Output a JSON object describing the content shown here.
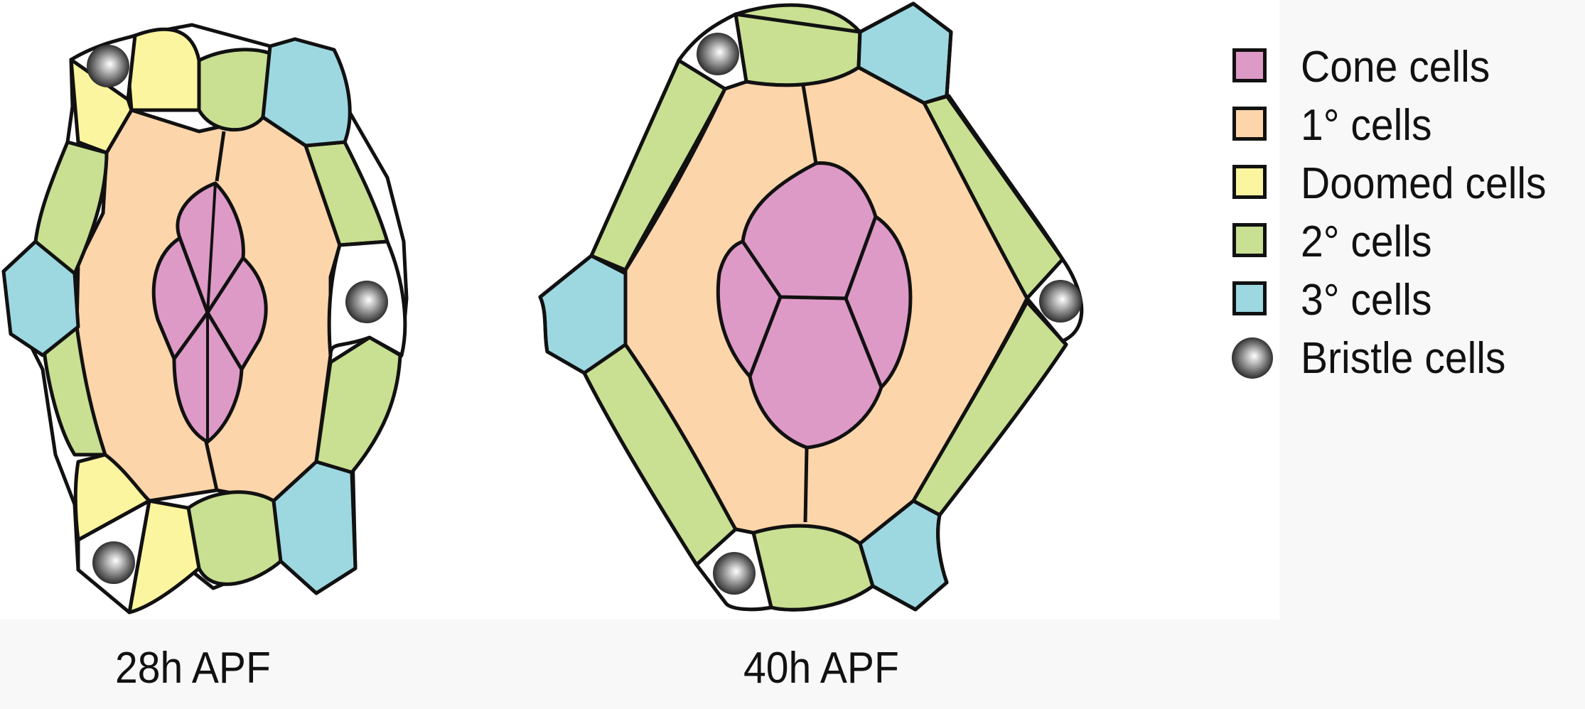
{
  "captions": {
    "left": "28h APF",
    "right": "40h APF"
  },
  "legend": [
    {
      "label": "Cone cells",
      "color": "#de9ac6"
    },
    {
      "label": "1° cells",
      "color": "#fdd5aa"
    },
    {
      "label": "Doomed cells",
      "color": "#fbf59f"
    },
    {
      "label": "2° cells",
      "color": "#c9df92"
    },
    {
      "label": "3° cells",
      "color": "#9dd8e1"
    },
    {
      "label": "Bristle cells",
      "color": "#7a7a7a"
    }
  ],
  "colors": {
    "cone": "#de9ac6",
    "primary": "#fdd5aa",
    "doomed": "#fbf59f",
    "secondary": "#c9df92",
    "tertiary": "#9dd8e1",
    "bristle": "#7a7a7a",
    "outline": "#111111"
  }
}
